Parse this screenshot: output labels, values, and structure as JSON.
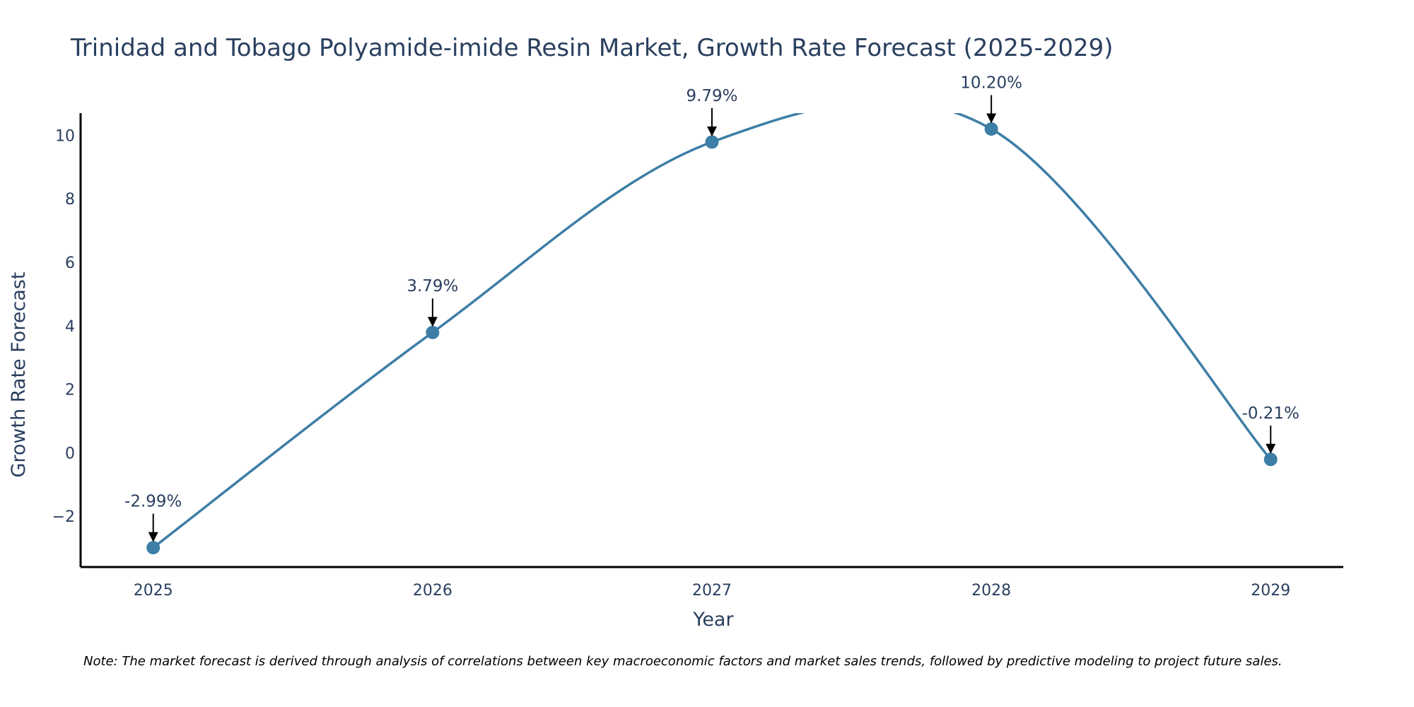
{
  "chart_data": {
    "type": "line",
    "title": "Trinidad and Tobago Polyamide-imide Resin Market, Growth Rate Forecast (2025-2029)",
    "xlabel": "Year",
    "ylabel": "Growth Rate Forecast",
    "categories": [
      "2025",
      "2026",
      "2027",
      "2028",
      "2029"
    ],
    "x": [
      2025,
      2026,
      2027,
      2028,
      2029
    ],
    "values": [
      -2.99,
      3.79,
      9.79,
      10.2,
      -0.21
    ],
    "data_labels": [
      "-2.99%",
      "3.79%",
      "9.79%",
      "10.20%",
      "-0.21%"
    ],
    "y_ticks": [
      -2,
      0,
      2,
      4,
      6,
      8,
      10
    ],
    "y_tick_labels": [
      "−2",
      "0",
      "2",
      "4",
      "6",
      "8",
      "10"
    ],
    "ylim": [
      -3.6,
      10.7
    ],
    "xlim": [
      2024.74,
      2029.26
    ],
    "grid": false,
    "line_shape": "spline",
    "colors": {
      "line": "#3d7ea6",
      "marker": "#3d7ea6",
      "arrow": "#000000",
      "text": "#2a3f5f"
    }
  },
  "note": "Note: The market forecast is derived through analysis of correlations between key macroeconomic factors and market sales trends, followed by predictive modeling to project future sales."
}
